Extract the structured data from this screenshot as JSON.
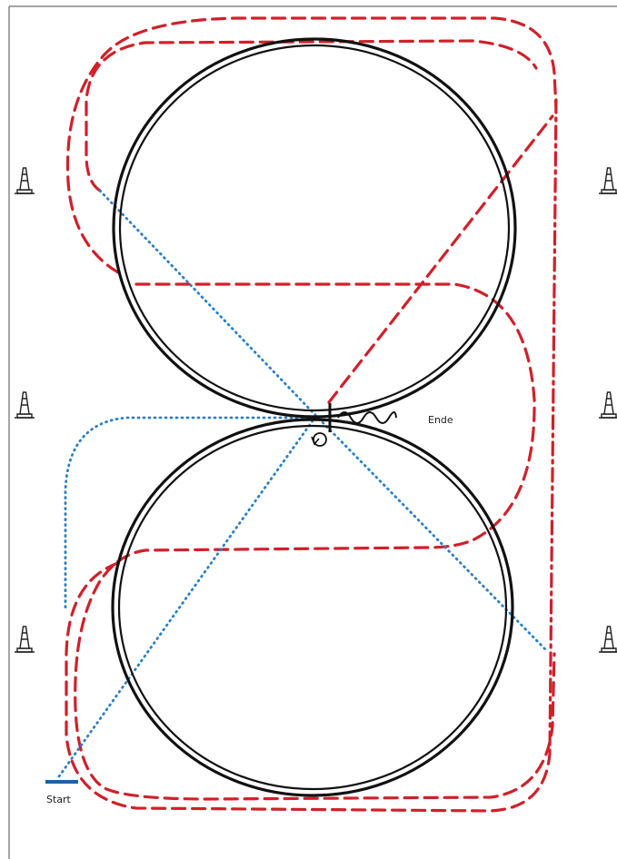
{
  "labels": {
    "start": "Start",
    "end": "Ende"
  },
  "colors": {
    "red_route": "#d0202a",
    "blue_route": "#2b7fc4",
    "start_marker": "#1f5fa8",
    "ring": "#111111"
  },
  "icons": {
    "cone": "traffic-cone-icon",
    "squiggle": "zigzag-line-icon"
  }
}
